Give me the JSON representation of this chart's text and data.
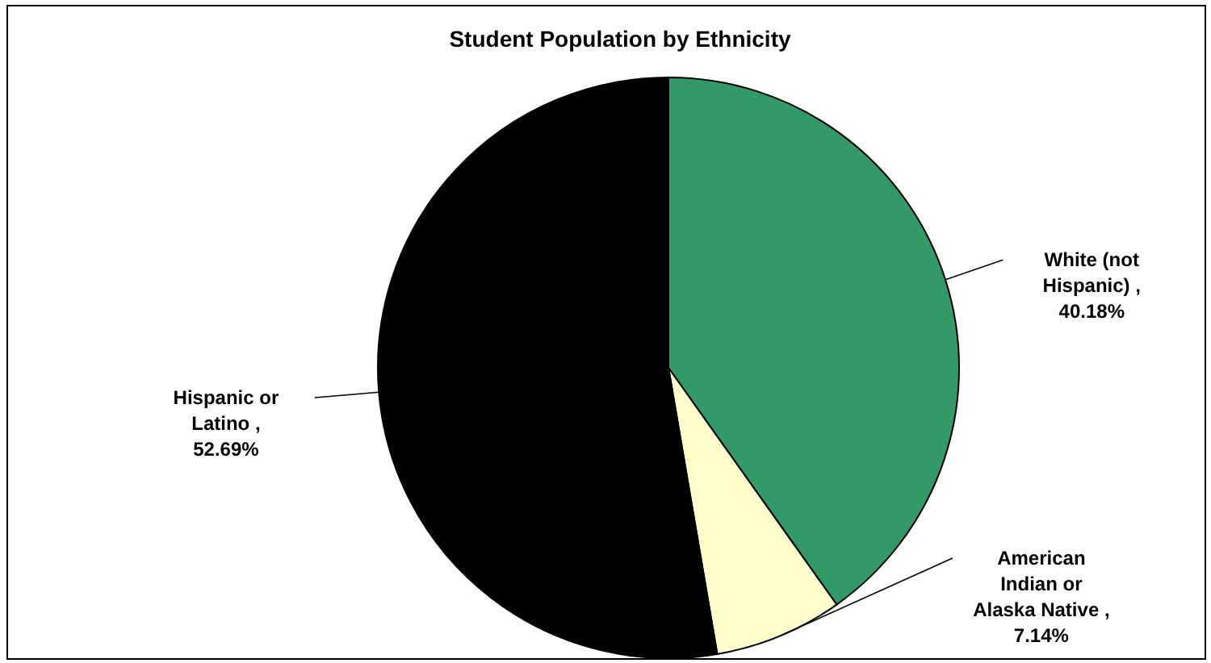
{
  "chart_data": {
    "type": "pie",
    "title": "Student Population by Ethnicity",
    "categories": [
      "White (not Hispanic)",
      "American Indian or Alaska Native",
      "Hispanic or Latino"
    ],
    "values": [
      40.18,
      7.14,
      52.69
    ],
    "colors": [
      "#339966",
      "#ffffcc",
      "#000000"
    ],
    "value_labels": [
      ", 40.18%",
      ", 7.14%",
      ", 52.69%"
    ]
  }
}
